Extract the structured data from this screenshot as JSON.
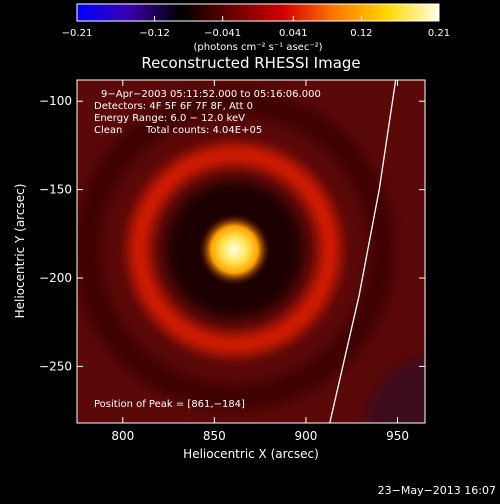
{
  "chart_data": {
    "type": "heatmap",
    "title": "Reconstructed RHESSI Image",
    "xlabel": "Heliocentric X (arcsec)",
    "ylabel": "Heliocentric Y (arcsec)",
    "xlim": [
      775,
      965
    ],
    "ylim": [
      -282,
      -88
    ],
    "x_ticks": [
      800,
      850,
      900,
      950
    ],
    "y_ticks": [
      -100,
      -150,
      -200,
      -250
    ],
    "x_tick_labels": [
      "800",
      "850",
      "900",
      "950"
    ],
    "y_tick_labels": [
      "−100",
      "−150",
      "−200",
      "−250"
    ],
    "colorbar": {
      "range": [
        -0.21,
        0.21
      ],
      "ticks": [
        -0.21,
        -0.12,
        -0.041,
        0.041,
        0.12,
        0.21
      ],
      "tick_labels": [
        "−0.21",
        "−0.12",
        "−0.041",
        "0.041",
        "0.12",
        "0.21"
      ],
      "unit_label": "(photons cm⁻² s⁻¹ asec⁻²)"
    },
    "annotations": {
      "time_range": "9−Apr−2003 05:11:52.000 to 05:16:06.000",
      "detectors": "Detectors: 4F 5F 6F 7F 8F, Att 0",
      "energy_range": "Energy Range: 6.0 − 12.0 keV",
      "clean": "Clean",
      "total_counts": "Total counts: 4.04E+05",
      "peak_position": "Position of Peak = [861,−184]"
    },
    "peak": {
      "x": 861,
      "y": -184,
      "value": 0.21
    },
    "ring": {
      "center_x": 861,
      "center_y": -184,
      "radius": 52,
      "value": 0.045
    },
    "limb": [
      [
        949,
        -88
      ],
      [
        940,
        -150
      ],
      [
        929,
        -210
      ],
      [
        913,
        -282
      ]
    ],
    "footer_date": "23−May−2013 16:07"
  },
  "colors": {
    "background": "#000000",
    "text": "#ffffff",
    "colormap": [
      "#0000ff",
      "#3a00b0",
      "#000000",
      "#6a0000",
      "#d40000",
      "#ff7a00",
      "#ffd700",
      "#ffffe6"
    ]
  }
}
